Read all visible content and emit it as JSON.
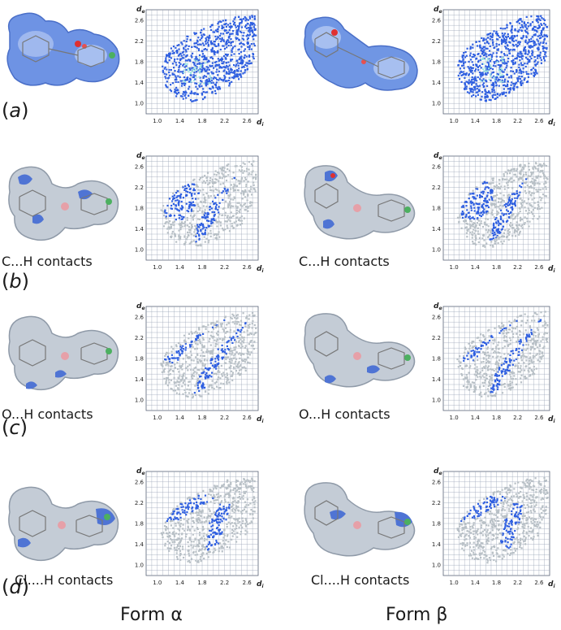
{
  "panels": [
    {
      "letter": "a",
      "contact": ""
    },
    {
      "letter": "b",
      "contact": "C...H contacts"
    },
    {
      "letter": "c",
      "contact": "O...H contacts"
    },
    {
      "letter": "d",
      "contact": "Cl....H contacts"
    }
  ],
  "forms": {
    "alpha": "Form α",
    "beta": "Form β"
  },
  "plot_axes": {
    "y_label": "de",
    "x_label": "di"
  },
  "colors": {
    "fingerprint": "#2f5fe0",
    "grey": "#b8c0c6",
    "grid": "#9aa4b8",
    "surface_blue": "#5a80d8",
    "surface_red": "#e03030"
  },
  "chart_data": [
    {
      "type": "scatter",
      "panel": "a",
      "form": "alpha",
      "x_ticks": [
        "1.0",
        "1.4",
        "1.8",
        "2.2",
        "2.6"
      ],
      "y_ticks": [
        "1.0",
        "1.4",
        "1.8",
        "2.2",
        "2.6"
      ],
      "xlim": [
        0.8,
        2.8
      ],
      "ylim": [
        0.8,
        2.8
      ],
      "highlight": "all"
    },
    {
      "type": "scatter",
      "panel": "a",
      "form": "beta",
      "x_ticks": [
        "1.0",
        "1.4",
        "1.8",
        "2.2",
        "2.6"
      ],
      "y_ticks": [
        "1.0",
        "1.4",
        "1.8",
        "2.2",
        "2.6"
      ],
      "xlim": [
        0.8,
        2.8
      ],
      "ylim": [
        0.8,
        2.8
      ],
      "highlight": "all"
    },
    {
      "type": "scatter",
      "panel": "b",
      "form": "alpha",
      "x_ticks": [
        "1.0",
        "1.4",
        "1.8",
        "2.2",
        "2.6"
      ],
      "y_ticks": [
        "1.0",
        "1.4",
        "1.8",
        "2.2",
        "2.6"
      ],
      "xlim": [
        0.8,
        2.8
      ],
      "ylim": [
        0.8,
        2.8
      ],
      "highlight": "C...H"
    },
    {
      "type": "scatter",
      "panel": "b",
      "form": "beta",
      "x_ticks": [
        "1.0",
        "1.4",
        "1.8",
        "2.2",
        "2.6"
      ],
      "y_ticks": [
        "1.0",
        "1.4",
        "1.8",
        "2.2",
        "2.6"
      ],
      "xlim": [
        0.8,
        2.8
      ],
      "ylim": [
        0.8,
        2.8
      ],
      "highlight": "C...H"
    },
    {
      "type": "scatter",
      "panel": "c",
      "form": "alpha",
      "x_ticks": [
        "1.0",
        "1.4",
        "1.8",
        "2.2",
        "2.6"
      ],
      "y_ticks": [
        "1.0",
        "1.4",
        "1.8",
        "2.2",
        "2.6"
      ],
      "xlim": [
        0.8,
        2.8
      ],
      "ylim": [
        0.8,
        2.8
      ],
      "highlight": "O...H"
    },
    {
      "type": "scatter",
      "panel": "c",
      "form": "beta",
      "x_ticks": [
        "1.0",
        "1.4",
        "1.8",
        "2.2",
        "2.6"
      ],
      "y_ticks": [
        "1.0",
        "1.4",
        "1.8",
        "2.2",
        "2.6"
      ],
      "xlim": [
        0.8,
        2.8
      ],
      "ylim": [
        0.8,
        2.8
      ],
      "highlight": "O...H"
    },
    {
      "type": "scatter",
      "panel": "d",
      "form": "alpha",
      "x_ticks": [
        "1.0",
        "1.4",
        "1.8",
        "2.2",
        "2.6"
      ],
      "y_ticks": [
        "1.0",
        "1.4",
        "1.8",
        "2.2",
        "2.6"
      ],
      "xlim": [
        0.8,
        2.8
      ],
      "ylim": [
        0.8,
        2.8
      ],
      "highlight": "Cl...H"
    },
    {
      "type": "scatter",
      "panel": "d",
      "form": "beta",
      "x_ticks": [
        "1.0",
        "1.4",
        "1.8",
        "2.2",
        "2.6"
      ],
      "y_ticks": [
        "1.0",
        "1.4",
        "1.8",
        "2.2",
        "2.6"
      ],
      "xlim": [
        0.8,
        2.8
      ],
      "ylim": [
        0.8,
        2.8
      ],
      "highlight": "Cl...H"
    }
  ]
}
